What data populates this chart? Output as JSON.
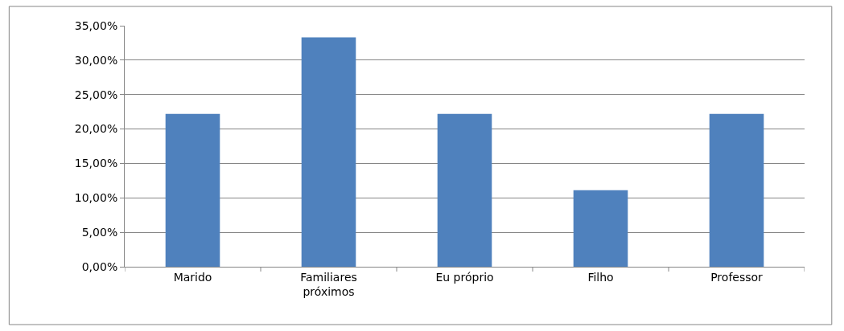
{
  "chart_data": {
    "type": "bar",
    "categories": [
      "Marido",
      "Familiares próximos",
      "Eu próprio",
      "Filho",
      "Professor"
    ],
    "values": [
      22.2,
      33.3,
      22.2,
      11.1,
      22.2
    ],
    "color": "#4f81bd",
    "ylim": [
      0,
      35
    ],
    "yticks": [
      {
        "value": 0,
        "label": "0,00%"
      },
      {
        "value": 5,
        "label": "5,00%"
      },
      {
        "value": 10,
        "label": "10,00%"
      },
      {
        "value": 15,
        "label": "15,00%"
      },
      {
        "value": 20,
        "label": "20,00%"
      },
      {
        "value": 25,
        "label": "25,00%"
      },
      {
        "value": 30,
        "label": "30,00%"
      },
      {
        "value": 35,
        "label": "35,00%"
      }
    ],
    "grid": "y",
    "legend": false
  }
}
